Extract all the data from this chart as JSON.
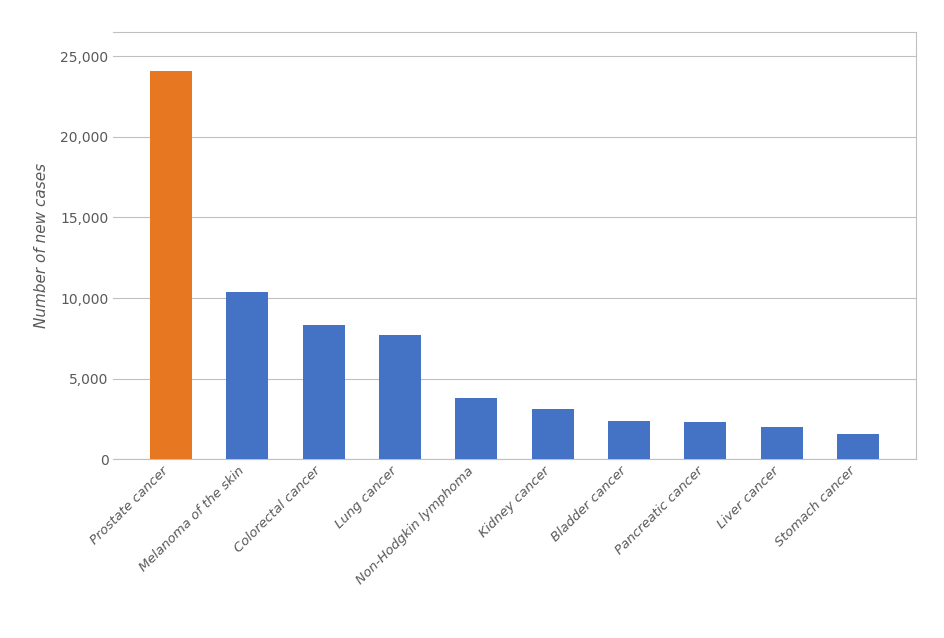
{
  "categories": [
    "Prostate cancer",
    "Melanoma of the skin",
    "Colorectal cancer",
    "Lung cancer",
    "Non-Hodgkin lymphoma",
    "Kidney cancer",
    "Bladder cancer",
    "Pancreatic cancer",
    "Liver cancer",
    "Stomach cancer"
  ],
  "values": [
    24100,
    10350,
    8300,
    7700,
    3800,
    3100,
    2350,
    2300,
    2000,
    1600
  ],
  "bar_colors": [
    "#E87722",
    "#4472C4",
    "#4472C4",
    "#4472C4",
    "#4472C4",
    "#4472C4",
    "#4472C4",
    "#4472C4",
    "#4472C4",
    "#4472C4"
  ],
  "ylabel": "Number of new cases",
  "ylim": [
    0,
    26500
  ],
  "yticks": [
    0,
    5000,
    10000,
    15000,
    20000,
    25000
  ],
  "background_color": "#ffffff",
  "plot_bg_color": "#ffffff",
  "grid_color": "#c0c0c0",
  "bar_width": 0.55,
  "xlabel_fontsize": 9.5,
  "ylabel_fontsize": 11,
  "ytick_fontsize": 10,
  "border_color": "#c0c0c0"
}
